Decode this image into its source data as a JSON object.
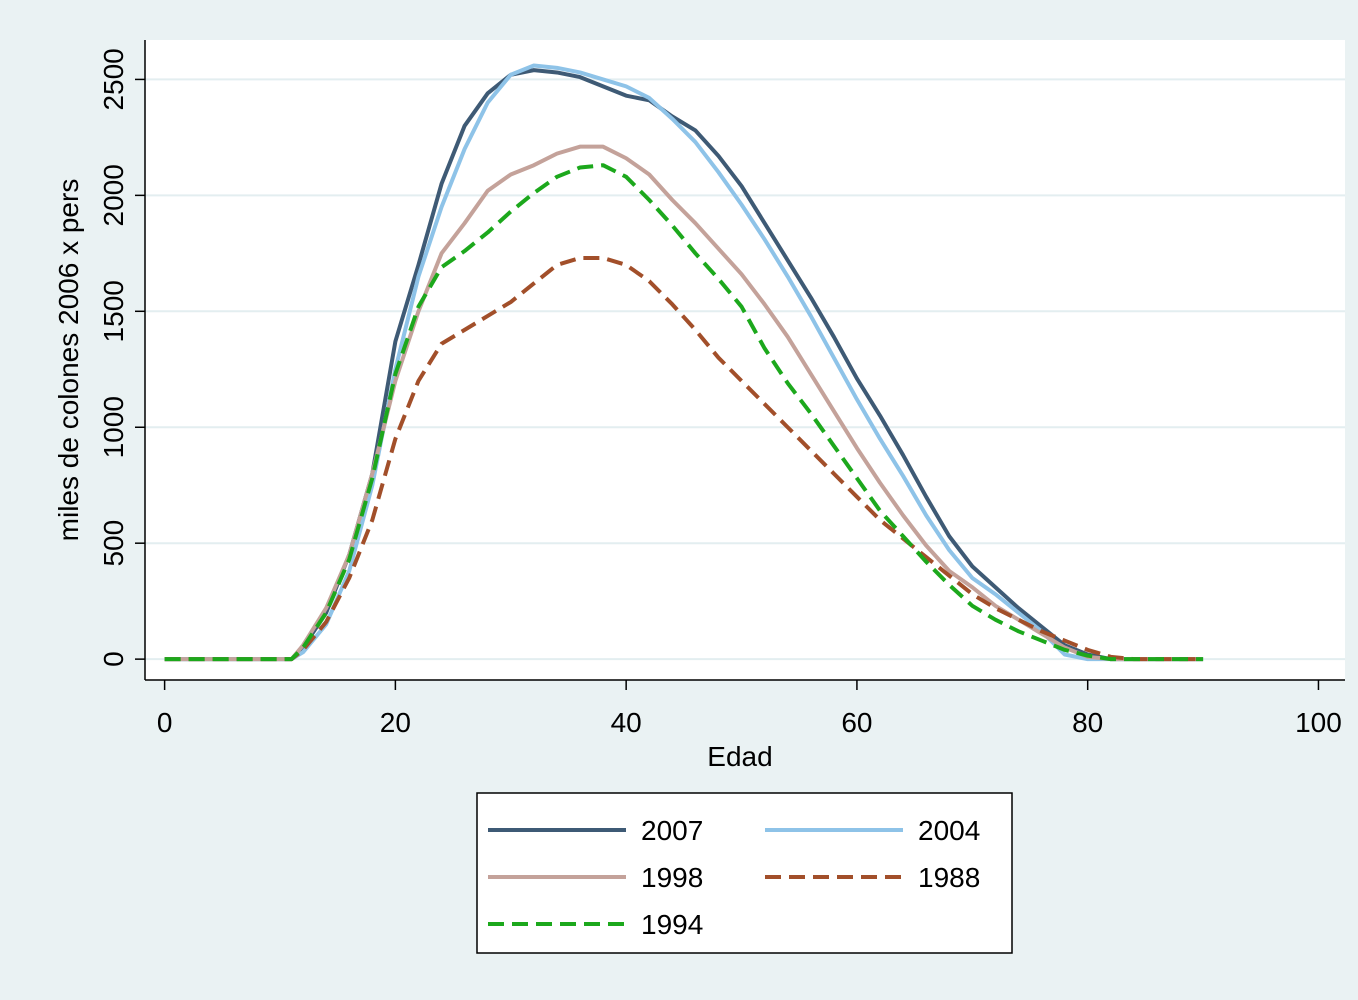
{
  "chart_data": {
    "type": "line",
    "x_label": "Edad",
    "y_label": "miles de colones 2006 x pers",
    "x": [
      0,
      2,
      4,
      6,
      8,
      10,
      11,
      12,
      14,
      16,
      18,
      20,
      22,
      24,
      26,
      28,
      30,
      32,
      34,
      36,
      38,
      40,
      42,
      44,
      46,
      48,
      50,
      52,
      54,
      56,
      58,
      60,
      62,
      64,
      66,
      68,
      70,
      72,
      74,
      76,
      78,
      80,
      82,
      84,
      86,
      88,
      90
    ],
    "series": [
      {
        "name": "2007",
        "color": "#3e5a75",
        "dashed": false,
        "values": [
          0,
          0,
          0,
          0,
          0,
          0,
          0,
          50,
          200,
          450,
          800,
          1370,
          1700,
          2050,
          2300,
          2440,
          2520,
          2540,
          2530,
          2510,
          2470,
          2430,
          2410,
          2340,
          2280,
          2170,
          2040,
          1880,
          1720,
          1560,
          1390,
          1210,
          1050,
          880,
          700,
          530,
          400,
          310,
          220,
          140,
          60,
          20,
          0,
          0,
          0,
          0,
          0
        ]
      },
      {
        "name": "2004",
        "color": "#8ec3e8",
        "dashed": false,
        "values": [
          0,
          0,
          0,
          0,
          0,
          0,
          0,
          30,
          150,
          380,
          750,
          1250,
          1650,
          1950,
          2200,
          2400,
          2520,
          2560,
          2550,
          2530,
          2500,
          2470,
          2420,
          2330,
          2230,
          2100,
          1960,
          1810,
          1650,
          1480,
          1300,
          1120,
          950,
          790,
          620,
          470,
          350,
          280,
          200,
          120,
          20,
          0,
          0,
          0,
          0,
          0,
          0
        ]
      },
      {
        "name": "1998",
        "color": "#c4a29a",
        "dashed": false,
        "values": [
          0,
          0,
          0,
          0,
          0,
          0,
          0,
          60,
          220,
          450,
          800,
          1200,
          1500,
          1750,
          1880,
          2020,
          2090,
          2130,
          2180,
          2210,
          2210,
          2160,
          2090,
          1980,
          1880,
          1770,
          1660,
          1530,
          1390,
          1230,
          1070,
          910,
          760,
          620,
          490,
          380,
          310,
          230,
          170,
          110,
          50,
          10,
          0,
          0,
          0,
          0,
          0
        ]
      },
      {
        "name": "1988",
        "color": "#a24f2a",
        "dashed": true,
        "values": [
          0,
          0,
          0,
          0,
          0,
          0,
          0,
          40,
          160,
          350,
          600,
          950,
          1200,
          1360,
          1420,
          1480,
          1540,
          1620,
          1700,
          1730,
          1730,
          1700,
          1630,
          1530,
          1420,
          1300,
          1200,
          1100,
          1000,
          900,
          800,
          700,
          600,
          520,
          440,
          360,
          280,
          220,
          170,
          120,
          80,
          40,
          10,
          0,
          0,
          0,
          0
        ]
      },
      {
        "name": "1994",
        "color": "#1ca81c",
        "dashed": true,
        "values": [
          0,
          0,
          0,
          0,
          0,
          0,
          0,
          50,
          200,
          430,
          780,
          1230,
          1520,
          1690,
          1760,
          1840,
          1930,
          2010,
          2080,
          2120,
          2130,
          2080,
          1980,
          1870,
          1750,
          1640,
          1520,
          1340,
          1190,
          1060,
          920,
          780,
          640,
          530,
          420,
          320,
          230,
          170,
          120,
          80,
          40,
          15,
          0,
          0,
          0,
          0,
          0
        ]
      }
    ],
    "xlim": [
      -1.7,
      102.3
    ],
    "ylim": [
      -90,
      2670
    ],
    "xticks": [
      0,
      20,
      40,
      60,
      80,
      100
    ],
    "yticks": [
      0,
      500,
      1000,
      1500,
      2000,
      2500
    ],
    "grid": true
  }
}
